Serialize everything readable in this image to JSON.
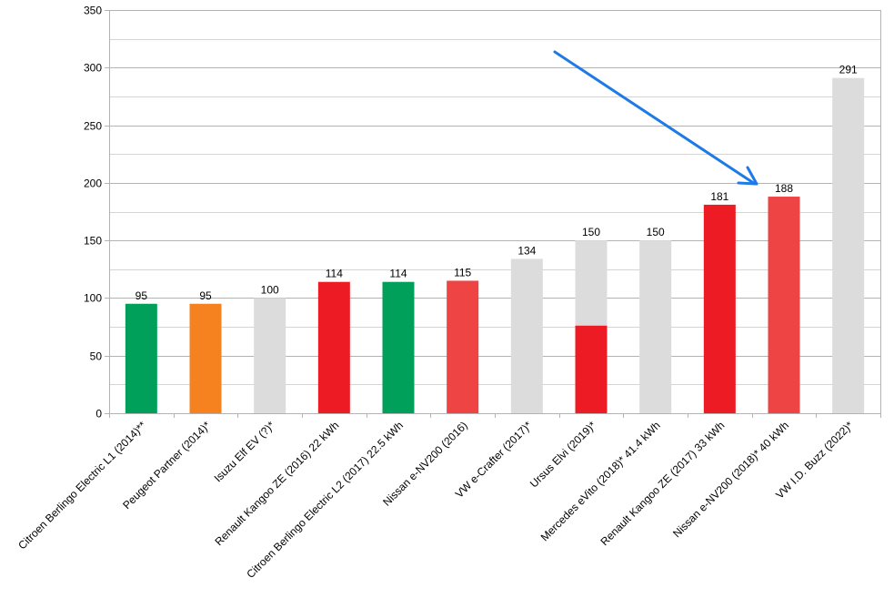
{
  "chart_data": {
    "type": "bar",
    "categories": [
      "Citroen Berlingo Electric L1 (2014)**",
      "Peugeot  Partner (2014)*",
      "Isuzu Elf EV (?)*",
      "Renault Kangoo ZE (2016) 22 kWh",
      "Citroen Berlingo Electric L2 (2017) 22.5 kWh",
      "Nissan e-NV200 (2016)",
      "VW e-Crafter (2017)*",
      "Ursus Elvi (2019)*",
      "Mercedes eVito (2018)* 41.4 kWh",
      "Renault Kangoo ZE (2017) 33 kWh",
      "Nissan e-NV200 (2018)* 40 kWh",
      "VW I.D. Buzz (2022)*"
    ],
    "values": [
      95,
      95,
      100,
      114,
      114,
      115,
      134,
      150,
      150,
      181,
      188,
      291
    ],
    "data_labels": [
      "95",
      "95",
      "100",
      "114",
      "114",
      "115",
      "134",
      "150",
      "150",
      "181",
      "188",
      "291"
    ],
    "bar_colors": [
      "#00a05a",
      "#f5821f",
      "#dcdcdc",
      "#ed1c24",
      "#00a05a",
      "#ef4444",
      "#dcdcdc",
      "#dcdcdc",
      "#dcdcdc",
      "#ed1c24",
      "#ef4444",
      "#dcdcdc"
    ],
    "overlay": {
      "category_index": 7,
      "value": 76,
      "color": "#ed1c24"
    },
    "ylim": [
      0,
      350
    ],
    "yticks": [
      "0",
      "50",
      "100",
      "150",
      "200",
      "250",
      "300",
      "350"
    ],
    "ytick_values": [
      0,
      50,
      100,
      150,
      200,
      250,
      300,
      350
    ],
    "grid": true,
    "title": "",
    "xlabel": "",
    "ylabel": "",
    "annotations": [
      {
        "type": "arrow",
        "color": "#1e7ae6",
        "points_to_category": "Nissan e-NV200 (2018)* 40 kWh"
      }
    ]
  }
}
